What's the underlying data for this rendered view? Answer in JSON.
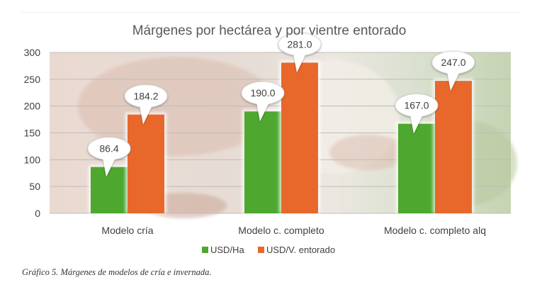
{
  "chart_data": {
    "type": "bar",
    "title": "Márgenes por hectárea y por vientre entorado",
    "categories": [
      "Modelo cría",
      "Modelo c. completo",
      "Modelo c. completo alq"
    ],
    "series": [
      {
        "name": "USD/Ha",
        "values": [
          86.4,
          190.0,
          167.0
        ],
        "labels": [
          "86.4",
          "190.0",
          "167.0"
        ],
        "color": "#4ea72e"
      },
      {
        "name": "USD/V. entorado",
        "values": [
          184.2,
          281.0,
          247.0
        ],
        "labels": [
          "184.2",
          "281.0",
          "247.0"
        ],
        "color": "#e8682c"
      }
    ],
    "ylim": [
      0,
      300
    ],
    "yticks": [
      "0",
      "50",
      "100",
      "150",
      "200",
      "250",
      "300"
    ],
    "grid": true,
    "legend_position": "bottom",
    "xlabel": "",
    "ylabel": ""
  },
  "caption": "Gráfico 5. Márgenes de modelos de cría e invernada."
}
